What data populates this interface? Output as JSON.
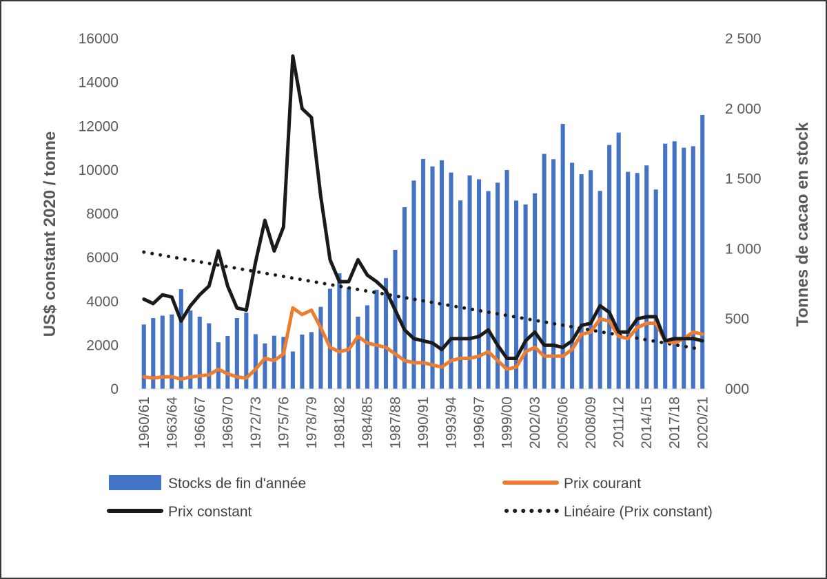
{
  "chart_data": {
    "type": "bar+line",
    "categories": [
      "1960/61",
      "1961/62",
      "1962/63",
      "1963/64",
      "1964/65",
      "1965/66",
      "1966/67",
      "1967/68",
      "1968/69",
      "1969/70",
      "1970/71",
      "1971/72",
      "1972/73",
      "1973/74",
      "1974/75",
      "1975/76",
      "1976/77",
      "1977/78",
      "1978/79",
      "1979/80",
      "1980/81",
      "1981/82",
      "1982/83",
      "1983/84",
      "1984/85",
      "1985/86",
      "1986/87",
      "1987/88",
      "1988/89",
      "1989/90",
      "1990/91",
      "1991/92",
      "1992/93",
      "1993/94",
      "1994/95",
      "1995/96",
      "1996/97",
      "1997/98",
      "1998/99",
      "1999/00",
      "2000/01",
      "2001/02",
      "2002/03",
      "2003/04",
      "2004/05",
      "2005/06",
      "2006/07",
      "2007/08",
      "2008/09",
      "2009/10",
      "2010/11",
      "2011/12",
      "2012/13",
      "2013/14",
      "2014/15",
      "2015/16",
      "2016/17",
      "2017/18",
      "2018/19",
      "2019/20",
      "2020/21"
    ],
    "x_tick_labels": [
      "1960/61",
      "1963/64",
      "1966/67",
      "1969/70",
      "1972/73",
      "1975/76",
      "1978/79",
      "1981/82",
      "1984/85",
      "1987/88",
      "1990/91",
      "1993/94",
      "1996/97",
      "1999/00",
      "2002/03",
      "2005/06",
      "2008/09",
      "2011/12",
      "2014/15",
      "2017/18",
      "2020/21"
    ],
    "y_left": {
      "label": "US$ constant 2020 / tonne",
      "min": 0,
      "max": 16000,
      "ticks": [
        "0",
        "2000",
        "4000",
        "6000",
        "8000",
        "10000",
        "12000",
        "14000",
        "16000"
      ]
    },
    "y_right": {
      "label": "Tonnes de cacao en stock",
      "min": 0,
      "max": 2500,
      "ticks": [
        "000",
        "500",
        "1 000",
        "1 500",
        "2 000",
        "2 500"
      ]
    },
    "series": [
      {
        "name": "Stocks de fin d'année",
        "kind": "bar",
        "axis": "right",
        "color": "#4472C4",
        "values": [
          460,
          506,
          523,
          532,
          712,
          560,
          516,
          469,
          333,
          378,
          506,
          545,
          391,
          325,
          380,
          371,
          268,
          388,
          406,
          586,
          715,
          825,
          725,
          516,
          597,
          708,
          791,
          993,
          1297,
          1487,
          1641,
          1588,
          1632,
          1544,
          1345,
          1524,
          1496,
          1412,
          1472,
          1562,
          1344,
          1316,
          1396,
          1677,
          1639,
          1891,
          1614,
          1532,
          1561,
          1413,
          1741,
          1829,
          1549,
          1541,
          1595,
          1423,
          1750,
          1767,
          1721,
          1732,
          1955
        ]
      },
      {
        "name": "Prix courant",
        "kind": "line",
        "axis": "left",
        "color": "#ED7D31",
        "values": [
          550,
          500,
          550,
          560,
          450,
          550,
          600,
          650,
          900,
          700,
          550,
          500,
          900,
          1400,
          1300,
          1600,
          3700,
          3400,
          3600,
          2800,
          1900,
          1700,
          1800,
          2400,
          2100,
          2000,
          1900,
          1600,
          1300,
          1200,
          1200,
          1100,
          1000,
          1300,
          1400,
          1400,
          1500,
          1700,
          1300,
          900,
          1000,
          1700,
          1900,
          1500,
          1500,
          1500,
          1800,
          2500,
          2600,
          3200,
          3100,
          2400,
          2300,
          2800,
          3000,
          3000,
          2200,
          2100,
          2300,
          2600,
          2500
        ]
      },
      {
        "name": "Prix constant",
        "kind": "line",
        "axis": "left",
        "color": "#1A1A1A",
        "values": [
          4100,
          3900,
          4300,
          4200,
          3100,
          3800,
          4300,
          4700,
          6300,
          4700,
          3700,
          3600,
          5800,
          7700,
          6300,
          7400,
          15200,
          12800,
          12400,
          8800,
          5900,
          4900,
          4900,
          5900,
          5200,
          4900,
          4500,
          3600,
          2700,
          2300,
          2200,
          2100,
          1800,
          2300,
          2300,
          2300,
          2400,
          2700,
          2000,
          1400,
          1400,
          2200,
          2600,
          2000,
          2000,
          1900,
          2200,
          2900,
          3000,
          3800,
          3500,
          2600,
          2600,
          3200,
          3300,
          3300,
          2200,
          2300,
          2300,
          2300,
          2200
        ]
      }
    ],
    "trendline": {
      "name": "Linéaire (Prix constant)",
      "of_series": "Prix constant",
      "type": "linear",
      "color": "#1A1A1A",
      "style": "dotted",
      "start_value": 6250,
      "end_value": 1800
    },
    "legend": {
      "position": "bottom",
      "items": [
        {
          "label": "Stocks de fin d'année",
          "symbol": "bar",
          "color": "#4472C4"
        },
        {
          "label": "Prix courant",
          "symbol": "line",
          "color": "#ED7D31"
        },
        {
          "label": "Prix constant",
          "symbol": "line",
          "color": "#1A1A1A"
        },
        {
          "label": "Linéaire (Prix constant)",
          "symbol": "dotted",
          "color": "#1A1A1A"
        }
      ]
    },
    "grid": false
  }
}
